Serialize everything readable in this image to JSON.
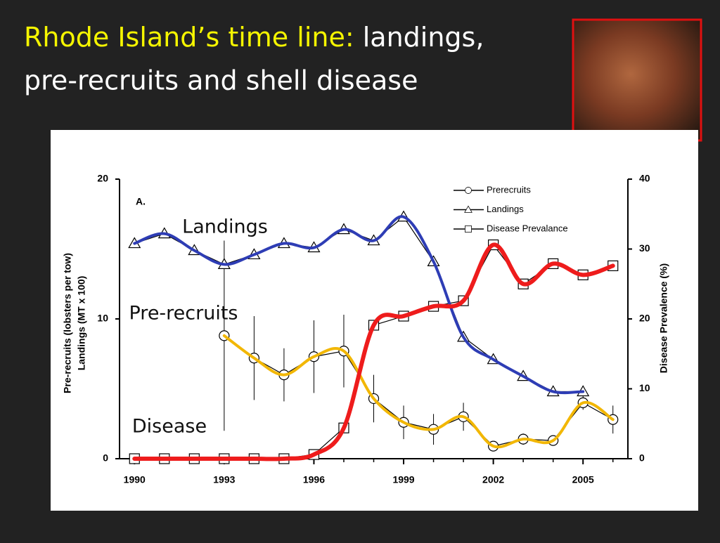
{
  "slide_title": {
    "highlight": "Rhode Island’s time line:",
    "rest_line1": "landings,",
    "line2": "pre-recruits and shell disease"
  },
  "chart_data": {
    "type": "line",
    "panel_label": "A.",
    "ylabel": [
      "Pre-recruits  (lobsters  per tow)",
      "Landings (MT x 100)"
    ],
    "y2label": "Disease Prevalence (%)",
    "x": [
      1990,
      1991,
      1992,
      1993,
      1994,
      1995,
      1996,
      1997,
      1998,
      1999,
      2000,
      2001,
      2002,
      2003,
      2004,
      2005,
      2006
    ],
    "xlim": [
      1989.5,
      2006.5
    ],
    "xticks": [
      1990,
      1993,
      1996,
      1999,
      2002,
      2005
    ],
    "ylim": [
      0,
      20
    ],
    "yticks": [
      0,
      10,
      20
    ],
    "y2lim": [
      0,
      40
    ],
    "y2ticks": [
      0,
      10,
      20,
      30,
      40
    ],
    "series": [
      {
        "name": "Prerecruits",
        "marker": "circle",
        "color": "#f2b705",
        "values": [
          null,
          null,
          null,
          8.8,
          7.2,
          6.0,
          7.3,
          7.7,
          4.3,
          2.6,
          2.1,
          3.0,
          0.9,
          1.4,
          1.3,
          4.0,
          2.8
        ],
        "errors": [
          null,
          null,
          null,
          6.8,
          3.0,
          1.9,
          2.6,
          2.6,
          1.7,
          1.2,
          1.1,
          1.0,
          0.2,
          0.4,
          0.3,
          0.5,
          1.0
        ]
      },
      {
        "name": "Landings",
        "marker": "triangle",
        "color": "#2e3db5",
        "values": [
          15.4,
          16.1,
          14.9,
          13.9,
          14.6,
          15.4,
          15.1,
          16.4,
          15.6,
          17.3,
          14.1,
          8.7,
          7.1,
          5.9,
          4.8,
          4.8,
          null
        ]
      },
      {
        "name": "Disease Prevalance",
        "marker": "square",
        "color": "#ee1c1c",
        "axis": "y2",
        "values": [
          0,
          0,
          0,
          0,
          0,
          0,
          0.6,
          4.4,
          19.1,
          20.4,
          21.8,
          22.6,
          30.6,
          25.0,
          27.9,
          26.3,
          27.6
        ]
      }
    ],
    "annotations": [
      "Landings",
      "Pre-recruits",
      "Disease"
    ]
  }
}
